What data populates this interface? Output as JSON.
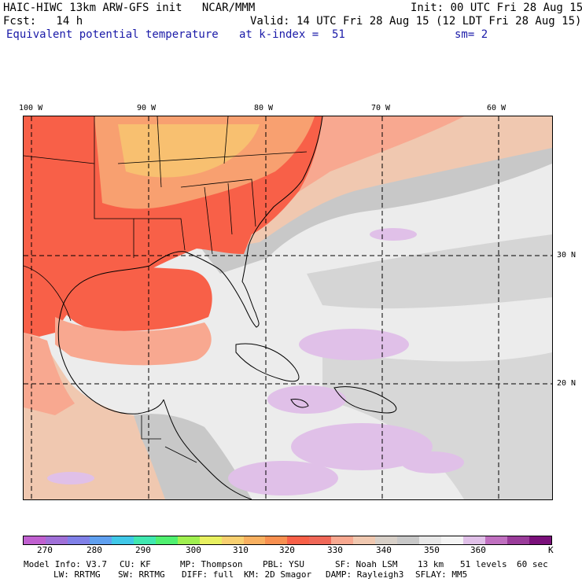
{
  "header": {
    "title_left": "HAIC-HIWC 13km ARW-GFS init   NCAR/MMM",
    "init": "Init: 00 UTC Fri 28 Aug 15",
    "fcst": "Fcst:   14 h",
    "valid": "Valid: 14 UTC Fri 28 Aug 15 (12 LDT Fri 28 Aug 15)",
    "field": "Equivalent potential temperature",
    "level": "at k-index =  51",
    "smoothing": "sm= 2"
  },
  "map": {
    "lon_labels": [
      "100 W",
      "90 W",
      "80 W",
      "70 W",
      "60 W"
    ],
    "lat_labels": [
      "30 N",
      "20 N"
    ]
  },
  "colorbar": {
    "colors": [
      "#c060d0",
      "#a070d8",
      "#8080e8",
      "#5fa0f0",
      "#40c8e8",
      "#40e8b0",
      "#50f070",
      "#a0f050",
      "#e8f060",
      "#f8d070",
      "#f8b060",
      "#f89050",
      "#f86048",
      "#f06858",
      "#f8a890",
      "#f0c8b0",
      "#d8d0c8",
      "#c8c8c8",
      "#e8e8e8",
      "#f4f4f4",
      "#e0c0e8",
      "#c070c0",
      "#9a3c9a",
      "#7a107a"
    ],
    "labels": [
      "270",
      "280",
      "290",
      "300",
      "310",
      "320",
      "330",
      "340",
      "350",
      "360"
    ],
    "unit": "K"
  },
  "footer": {
    "line1": [
      "Model Info: V3.7",
      "CU: KF",
      "MP: Thompson",
      "PBL: YSU",
      "SF: Noah LSM",
      "13 km",
      "51 levels",
      "60 sec"
    ],
    "line2": [
      "LW: RRTMG",
      "SW: RRTMG",
      "DIFF: full",
      "KM: 2D Smagor",
      "DAMP: Rayleigh3",
      "SFLAY: MM5"
    ]
  }
}
